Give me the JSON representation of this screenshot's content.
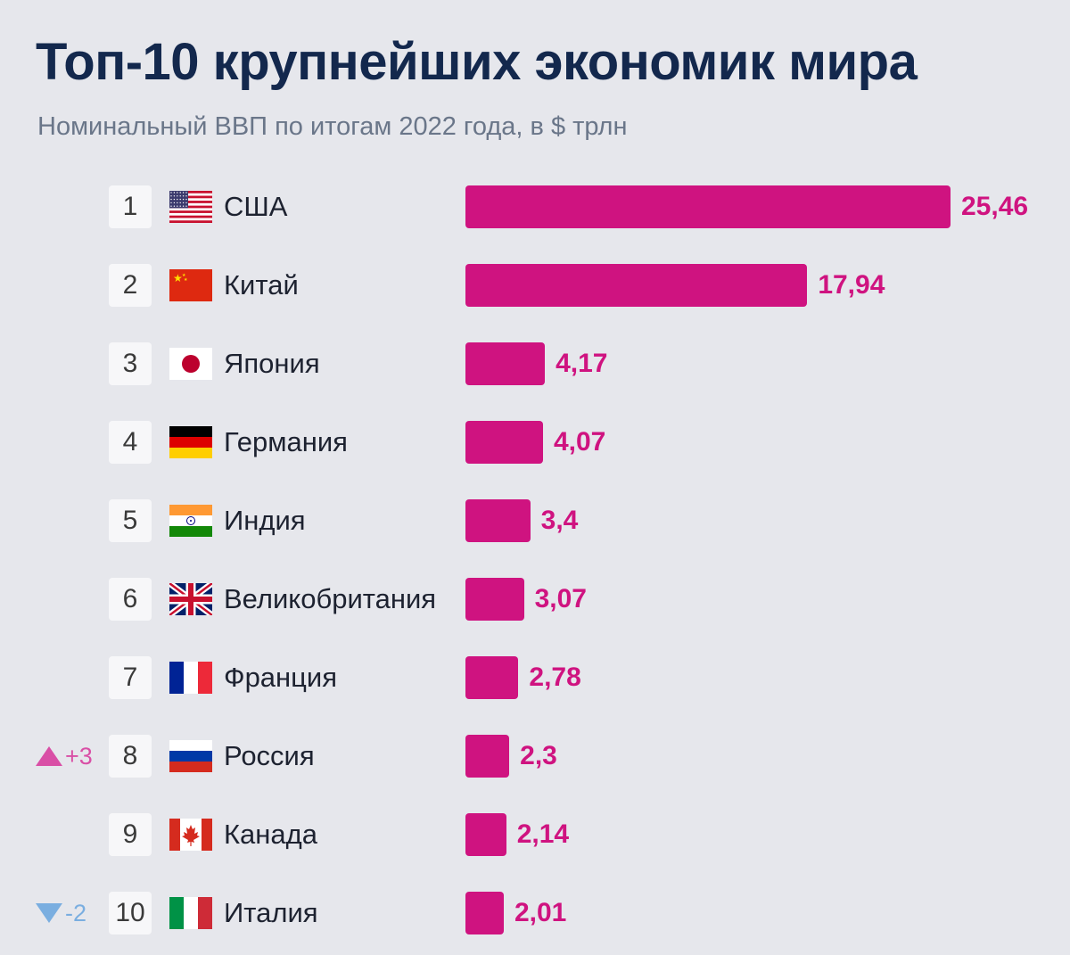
{
  "header": {
    "title": "Топ-10 крупнейших экономик мира",
    "subtitle": "Номинальный ВВП по итогам 2022 года, в $ трлн"
  },
  "colors": {
    "bar": "#cf1380",
    "up": "#d94fa6",
    "down": "#7aaee0",
    "title": "#13284d"
  },
  "chart_data": {
    "type": "bar",
    "orientation": "horizontal",
    "title": "Топ-10 крупнейших экономик мира",
    "subtitle": "Номинальный ВВП по итогам 2022 года, в $ трлн",
    "categories": [
      "США",
      "Китай",
      "Япония",
      "Германия",
      "Индия",
      "Великобритания",
      "Франция",
      "Россия",
      "Канада",
      "Италия"
    ],
    "values": [
      25.46,
      17.94,
      4.17,
      4.07,
      3.4,
      3.07,
      2.78,
      2.3,
      2.14,
      2.01
    ],
    "value_labels": [
      "25,46",
      "17,94",
      "4,17",
      "4,07",
      "3,4",
      "3,07",
      "2,78",
      "2,3",
      "2,14",
      "2,01"
    ],
    "ranks": [
      "1",
      "2",
      "3",
      "4",
      "5",
      "6",
      "7",
      "8",
      "9",
      "10"
    ],
    "flags": [
      "us-flag-icon",
      "cn-flag-icon",
      "jp-flag-icon",
      "de-flag-icon",
      "in-flag-icon",
      "gb-flag-icon",
      "fr-flag-icon",
      "ru-flag-icon",
      "ca-flag-icon",
      "it-flag-icon"
    ],
    "changes": [
      null,
      null,
      null,
      null,
      null,
      null,
      null,
      {
        "direction": "up",
        "label": "+3"
      },
      null,
      {
        "direction": "down",
        "label": "-2"
      }
    ]
  }
}
